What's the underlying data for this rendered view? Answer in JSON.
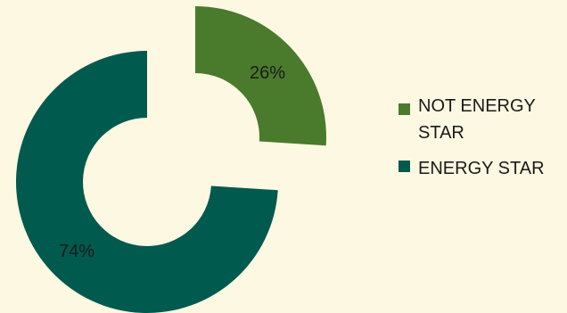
{
  "chart_data": {
    "type": "pie",
    "style": "donut",
    "exploded": true,
    "slices": [
      {
        "label": "NOT ENERGY STAR",
        "value": 26,
        "display": "26%",
        "color": "#4a7a2c"
      },
      {
        "label": "ENERGY STAR",
        "value": 74,
        "display": "74%",
        "color": "#005a4e"
      }
    ],
    "legend_position": "right",
    "background": "#fdf8e1"
  }
}
